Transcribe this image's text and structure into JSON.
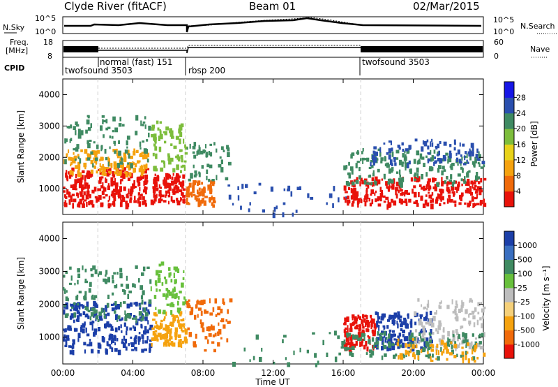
{
  "header": {
    "station": "Clyde River (fitACF)",
    "beam": "Beam 01",
    "date": "02/Mar/2015"
  },
  "strip_panels": {
    "nsky_label": "N.Sky",
    "nsky_ticks": [
      "10^5",
      "10^0"
    ],
    "nsearch_label": "N.Search",
    "nsearch_ticks": [
      "10^5",
      "10^0"
    ],
    "freq_label_1": "Freq.",
    "freq_label_2": "[MHz]",
    "freq_ticks": [
      "18",
      "8"
    ],
    "nave_label": "Nave",
    "nave_ticks": [
      "60",
      "0"
    ],
    "cpid_label": "CPID",
    "cpid_segments": [
      {
        "name": "twofsound 3503",
        "start": 0.0,
        "end": 2.0
      },
      {
        "name": "normal (fast) 151",
        "start": 2.0,
        "end": 7.0
      },
      {
        "name": "rbsp 200",
        "start": 7.0,
        "end": 17.0
      },
      {
        "name": "twofsound 3503",
        "start": 17.0,
        "end": 24.0
      }
    ]
  },
  "chart_data": [
    {
      "type": "heatmap",
      "title": "Power",
      "ylabel": "Slant Range [km]",
      "ylim": [
        180,
        4500
      ],
      "yticks": [
        "1000",
        "2000",
        "3000",
        "4000"
      ],
      "xlim": [
        0,
        24
      ],
      "colorbar_label": "Power [dB]",
      "colorbar_ticks": [
        "4",
        "8",
        "12",
        "16",
        "20",
        "24",
        "28"
      ],
      "colorbar_colors": [
        "#1616e6",
        "#2a4fae",
        "#3f8a62",
        "#7dbd3c",
        "#e8d21a",
        "#f5a20f",
        "#f06a0a",
        "#e8120a"
      ],
      "scatter_groups": [
        {
          "t0": 0.0,
          "t1": 4.8,
          "r0": 500,
          "r1": 1700,
          "color": "#e8120a",
          "n": 240
        },
        {
          "t0": 0.0,
          "t1": 4.8,
          "r0": 1500,
          "r1": 2300,
          "color": "#f5a20f",
          "n": 140
        },
        {
          "t0": 0.0,
          "t1": 5.0,
          "r0": 1800,
          "r1": 3400,
          "color": "#3f8a62",
          "n": 90
        },
        {
          "t0": 5.0,
          "t1": 6.9,
          "r0": 600,
          "r1": 1500,
          "color": "#e8120a",
          "n": 110
        },
        {
          "t0": 5.0,
          "t1": 7.0,
          "r0": 1500,
          "r1": 3200,
          "color": "#7dbd3c",
          "n": 70
        },
        {
          "t0": 7.0,
          "t1": 8.6,
          "r0": 500,
          "r1": 1300,
          "color": "#f06a0a",
          "n": 70
        },
        {
          "t0": 7.0,
          "t1": 9.5,
          "r0": 1300,
          "r1": 2500,
          "color": "#3f8a62",
          "n": 50
        },
        {
          "t0": 9.0,
          "t1": 16.5,
          "r0": 200,
          "r1": 1200,
          "color": "#2a4fae",
          "n": 35
        },
        {
          "t0": 16.0,
          "t1": 24.0,
          "r0": 500,
          "r1": 1400,
          "color": "#e8120a",
          "n": 260
        },
        {
          "t0": 16.0,
          "t1": 24.0,
          "r0": 1200,
          "r1": 2300,
          "color": "#3f8a62",
          "n": 180
        },
        {
          "t0": 17.5,
          "t1": 24.0,
          "r0": 1800,
          "r1": 2600,
          "color": "#2a4fae",
          "n": 90
        }
      ]
    },
    {
      "type": "heatmap",
      "title": "Velocity",
      "ylabel": "Slant Range [km]",
      "xlabel": "Time UT",
      "ylim": [
        180,
        4500
      ],
      "yticks": [
        "1000",
        "2000",
        "3000",
        "4000"
      ],
      "xlim": [
        0,
        24
      ],
      "xticks": [
        "00:00",
        "04:00",
        "08:00",
        "12:00",
        "16:00",
        "20:00",
        "00:00"
      ],
      "colorbar_label": "Velocity [m s⁻¹]",
      "colorbar_ticks": [
        "1000",
        "500",
        "100",
        "25",
        "-25",
        "-100",
        "-500",
        "-1000"
      ],
      "colorbar_colors": [
        "#1c3fa8",
        "#3a6fc0",
        "#3f8a62",
        "#68c03c",
        "#bdbdbd",
        "#f5d07a",
        "#f5a20f",
        "#f06a0a",
        "#e8120a"
      ],
      "scatter_groups": [
        {
          "t0": 0.0,
          "t1": 5.0,
          "r0": 600,
          "r1": 2100,
          "color": "#1c3fa8",
          "n": 230
        },
        {
          "t0": 0.0,
          "t1": 5.0,
          "r0": 1500,
          "r1": 3200,
          "color": "#3f8a62",
          "n": 120
        },
        {
          "t0": 5.0,
          "t1": 7.0,
          "r0": 800,
          "r1": 1800,
          "color": "#f5a20f",
          "n": 110
        },
        {
          "t0": 5.0,
          "t1": 7.0,
          "r0": 1800,
          "r1": 3300,
          "color": "#68c03c",
          "n": 60
        },
        {
          "t0": 7.0,
          "t1": 9.5,
          "r0": 600,
          "r1": 2200,
          "color": "#f06a0a",
          "n": 70
        },
        {
          "t0": 9.0,
          "t1": 16.5,
          "r0": 200,
          "r1": 1200,
          "color": "#3f8a62",
          "n": 30
        },
        {
          "t0": 16.0,
          "t1": 17.8,
          "r0": 700,
          "r1": 1700,
          "color": "#e8120a",
          "n": 110
        },
        {
          "t0": 17.8,
          "t1": 21.0,
          "r0": 700,
          "r1": 1800,
          "color": "#1c3fa8",
          "n": 150
        },
        {
          "t0": 20.0,
          "t1": 24.0,
          "r0": 700,
          "r1": 2200,
          "color": "#bdbdbd",
          "n": 120
        },
        {
          "t0": 16.0,
          "t1": 24.0,
          "r0": 400,
          "r1": 1200,
          "color": "#3f8a62",
          "n": 120
        },
        {
          "t0": 19.0,
          "t1": 24.0,
          "r0": 300,
          "r1": 1000,
          "color": "#f5a20f",
          "n": 60
        }
      ]
    }
  ]
}
